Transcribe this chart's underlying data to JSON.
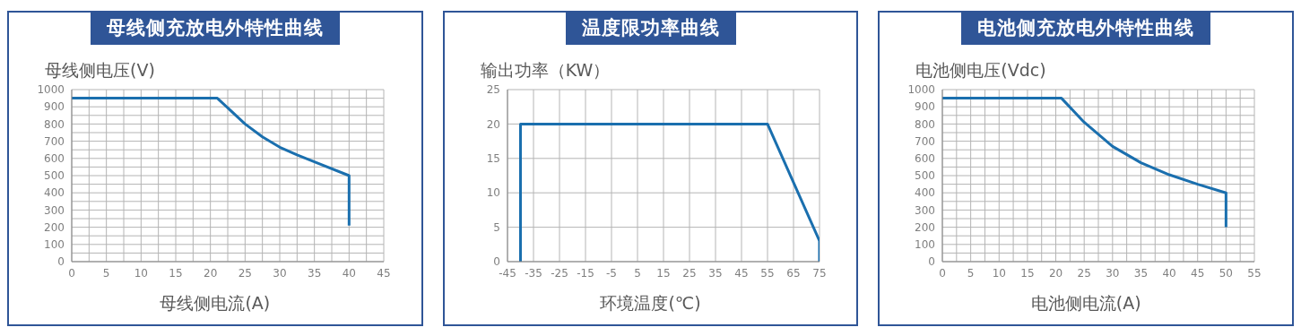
{
  "chart_data": [
    {
      "type": "line",
      "title": "母线侧充放电外特性曲线",
      "ylabel": "母线侧电压(V)",
      "xlabel": "母线侧电流(A)",
      "color": "#1a6fae",
      "x": [
        0,
        21,
        25,
        27.5,
        30,
        32.5,
        35,
        40,
        40
      ],
      "values": [
        950,
        950,
        800,
        725,
        665,
        620,
        580,
        500,
        210
      ],
      "xlim": [
        0,
        45
      ],
      "xticks": [
        0,
        {
          "value": 2.5,
          "label": null
        },
        5,
        {
          "value": 7.5,
          "label": null
        },
        10,
        {
          "value": 12.5,
          "label": null
        },
        15,
        {
          "value": 17.5,
          "label": null
        },
        20,
        {
          "value": 22.5,
          "label": null
        },
        25,
        {
          "value": 27.5,
          "label": null
        },
        30,
        {
          "value": 32.5,
          "label": null
        },
        35,
        {
          "value": 37.5,
          "label": null
        },
        40,
        {
          "value": 42.5,
          "label": null
        },
        45
      ],
      "ylim": [
        0,
        1000
      ],
      "yticks": [
        0,
        {
          "value": 50,
          "label": null
        },
        100,
        {
          "value": 150,
          "label": null
        },
        200,
        {
          "value": 250,
          "label": null
        },
        300,
        {
          "value": 350,
          "label": null
        },
        400,
        {
          "value": 450,
          "label": null
        },
        500,
        {
          "value": 550,
          "label": null
        },
        600,
        {
          "value": 650,
          "label": null
        },
        700,
        {
          "value": 750,
          "label": null
        },
        800,
        {
          "value": 850,
          "label": null
        },
        900,
        {
          "value": 950,
          "label": null
        },
        1000
      ],
      "grid": true
    },
    {
      "type": "line",
      "title": "温度限功率曲线",
      "ylabel": "输出功率（KW）",
      "xlabel": "环境温度(℃)",
      "color": "#1a6fae",
      "x": [
        -40,
        -40,
        55,
        75,
        75
      ],
      "values": [
        0,
        20,
        20,
        3,
        0
      ],
      "xlim": [
        -45,
        75
      ],
      "xticks": [
        -45,
        -35,
        -25,
        -15,
        -5,
        5,
        15,
        25,
        35,
        45,
        55,
        65,
        75
      ],
      "ylim": [
        0,
        25
      ],
      "yticks": [
        0,
        5,
        10,
        15,
        20,
        25
      ],
      "grid": true
    },
    {
      "type": "line",
      "title": "电池侧充放电外特性曲线",
      "ylabel": "电池侧电压(Vdc)",
      "xlabel": "电池侧电流(A)",
      "color": "#1a6fae",
      "x": [
        0,
        21,
        25,
        30,
        35,
        40,
        45,
        50,
        50
      ],
      "values": [
        950,
        950,
        810,
        670,
        575,
        505,
        450,
        400,
        200
      ],
      "xlim": [
        0,
        55
      ],
      "xticks": [
        0,
        {
          "value": 2.5,
          "label": null
        },
        5,
        {
          "value": 7.5,
          "label": null
        },
        10,
        {
          "value": 12.5,
          "label": null
        },
        15,
        {
          "value": 17.5,
          "label": null
        },
        20,
        {
          "value": 22.5,
          "label": null
        },
        25,
        {
          "value": 27.5,
          "label": null
        },
        30,
        {
          "value": 32.5,
          "label": null
        },
        35,
        {
          "value": 37.5,
          "label": null
        },
        40,
        {
          "value": 42.5,
          "label": null
        },
        45,
        {
          "value": 47.5,
          "label": null
        },
        50,
        {
          "value": 52.5,
          "label": null
        },
        55
      ],
      "ylim": [
        0,
        1000
      ],
      "yticks": [
        0,
        {
          "value": 50,
          "label": null
        },
        100,
        {
          "value": 150,
          "label": null
        },
        200,
        {
          "value": 250,
          "label": null
        },
        300,
        {
          "value": 350,
          "label": null
        },
        400,
        {
          "value": 450,
          "label": null
        },
        500,
        {
          "value": 550,
          "label": null
        },
        600,
        {
          "value": 650,
          "label": null
        },
        700,
        {
          "value": 750,
          "label": null
        },
        800,
        {
          "value": 850,
          "label": null
        },
        900,
        {
          "value": 950,
          "label": null
        },
        1000
      ],
      "grid": true
    }
  ]
}
